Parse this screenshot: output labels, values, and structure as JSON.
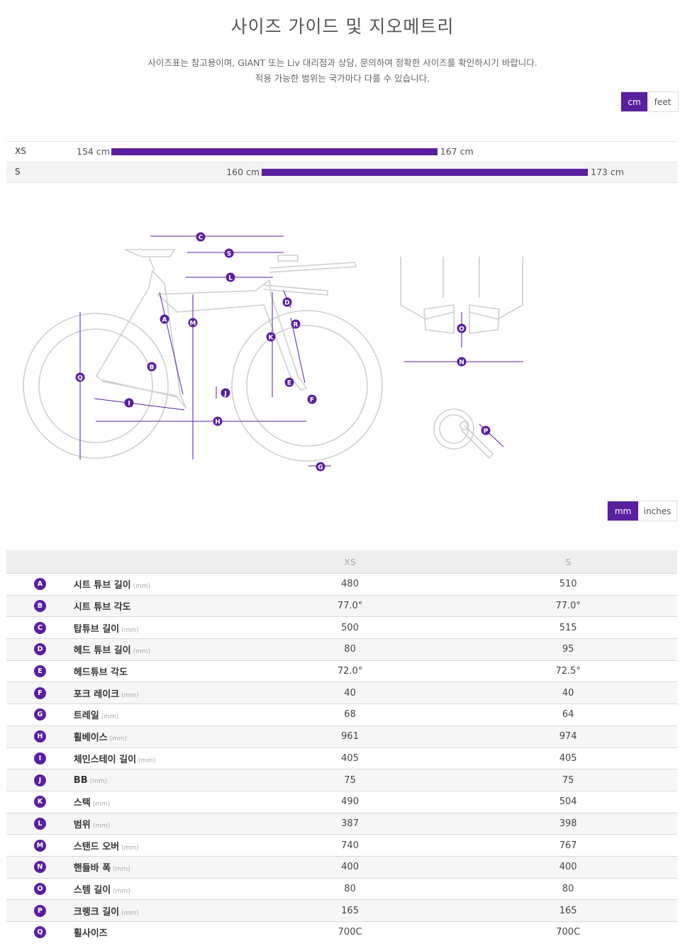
{
  "page": {
    "title": "사이즈 가이드 및 지오메트리",
    "intro_line1": "사이즈표는 참고용이며, GIANT 또는 Liv 대리점과 상담, 문의하여 정확한 사이즈를 확인하시기 바랍니다.",
    "intro_line2": "적용 가능한 범위는 국가마다 다를 수 있습니다."
  },
  "height_units": {
    "cm": "cm",
    "feet": "feet",
    "active": "cm"
  },
  "size_chart": [
    {
      "size": "XS",
      "min": 154,
      "max": 167,
      "min_label": "154 cm",
      "max_label": "167 cm"
    },
    {
      "size": "S",
      "min": 160,
      "max": 173,
      "min_label": "160 cm",
      "max_label": "173 cm"
    }
  ],
  "diagram_labels": [
    "A",
    "B",
    "C",
    "D",
    "E",
    "F",
    "G",
    "H",
    "I",
    "J",
    "K",
    "L",
    "M",
    "N",
    "O",
    "P",
    "Q",
    "R",
    "S"
  ],
  "geo_units": {
    "mm": "mm",
    "inches": "inches",
    "active": "mm"
  },
  "geometry": {
    "columns": [
      "XS",
      "S"
    ],
    "rows": [
      {
        "key": "A",
        "name": "시트 튜브 길이",
        "unit": "(mm)",
        "xs": "480",
        "s": "510"
      },
      {
        "key": "B",
        "name": "시트 튜브 각도",
        "unit": "",
        "xs": "77.0°",
        "s": "77.0°"
      },
      {
        "key": "C",
        "name": "탑튜브 길이",
        "unit": "(mm)",
        "xs": "500",
        "s": "515"
      },
      {
        "key": "D",
        "name": "헤드 튜브 길이",
        "unit": "(mm)",
        "xs": "80",
        "s": "95"
      },
      {
        "key": "E",
        "name": "헤드튜브 각도",
        "unit": "",
        "xs": "72.0°",
        "s": "72.5°"
      },
      {
        "key": "F",
        "name": "포크 레이크",
        "unit": "(mm)",
        "xs": "40",
        "s": "40"
      },
      {
        "key": "G",
        "name": "트레일",
        "unit": "(mm)",
        "xs": "68",
        "s": "64"
      },
      {
        "key": "H",
        "name": "휠베이스",
        "unit": "(mm)",
        "xs": "961",
        "s": "974"
      },
      {
        "key": "I",
        "name": "체인스테이 길이",
        "unit": "(mm)",
        "xs": "405",
        "s": "405"
      },
      {
        "key": "J",
        "name": "BB",
        "unit": "(mm)",
        "xs": "75",
        "s": "75"
      },
      {
        "key": "K",
        "name": "스택",
        "unit": "(mm)",
        "xs": "490",
        "s": "504"
      },
      {
        "key": "L",
        "name": "범위",
        "unit": "(mm)",
        "xs": "387",
        "s": "398"
      },
      {
        "key": "M",
        "name": "스탠드 오버",
        "unit": "(mm)",
        "xs": "740",
        "s": "767"
      },
      {
        "key": "N",
        "name": "핸들바 폭",
        "unit": "(mm)",
        "xs": "400",
        "s": "400"
      },
      {
        "key": "O",
        "name": "스템 길이",
        "unit": "(mm)",
        "xs": "80",
        "s": "80"
      },
      {
        "key": "P",
        "name": "크랭크 길이",
        "unit": "(mm)",
        "xs": "165",
        "s": "165"
      },
      {
        "key": "Q",
        "name": "휠사이즈",
        "unit": "",
        "xs": "700C",
        "s": "700C"
      }
    ]
  },
  "colors": {
    "accent": "#5a1fa0",
    "outline": "#cfcfcf"
  }
}
